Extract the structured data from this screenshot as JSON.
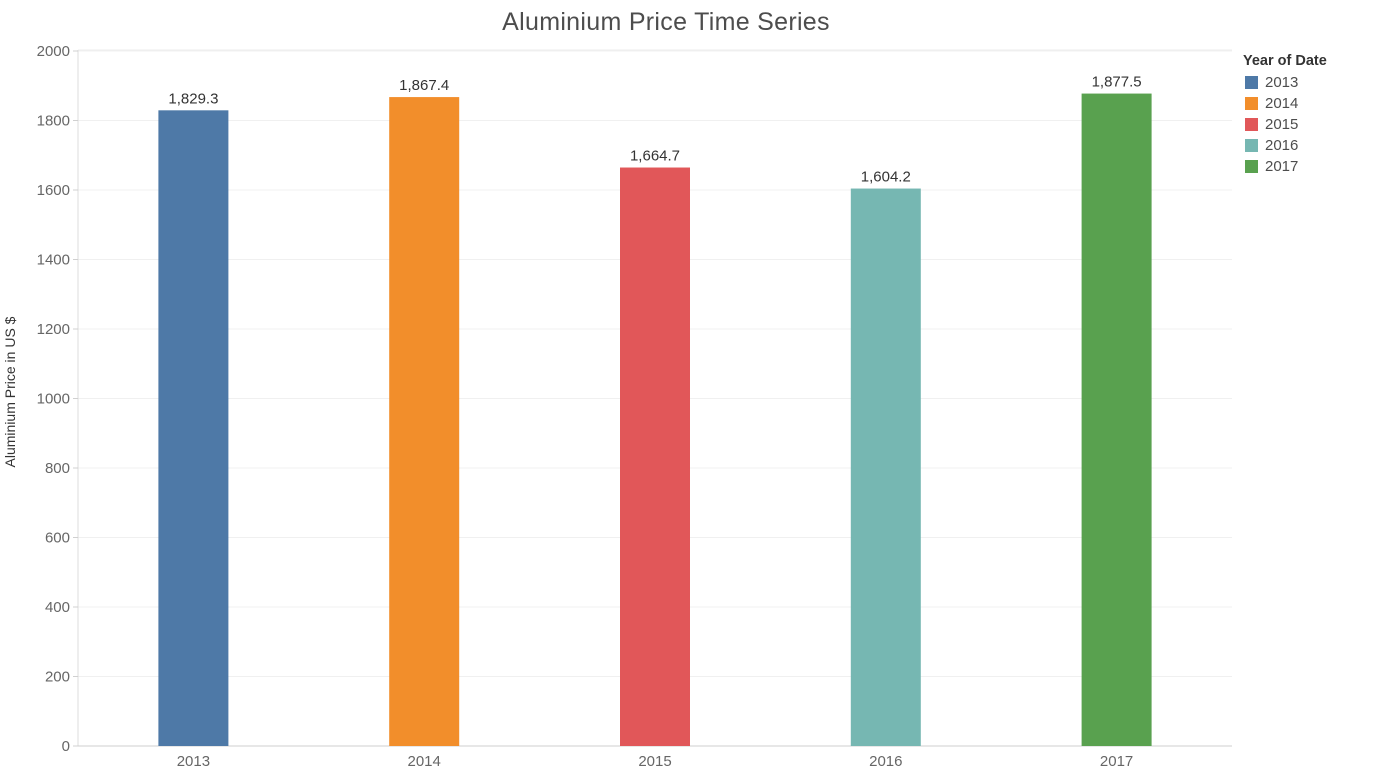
{
  "chart_data": {
    "type": "bar",
    "title": "Aluminium Price Time Series",
    "xlabel": "",
    "ylabel": "Aluminium Price in US $",
    "categories": [
      "2013",
      "2014",
      "2015",
      "2016",
      "2017"
    ],
    "values": [
      1829.3,
      1867.4,
      1664.7,
      1604.2,
      1877.5
    ],
    "value_labels": [
      "1,829.3",
      "1,867.4",
      "1,664.7",
      "1,604.2",
      "1,877.5"
    ],
    "colors": [
      "#4e79a7",
      "#f28e2b",
      "#e15759",
      "#76b7b2",
      "#59a14f"
    ],
    "ylim": [
      0,
      2000
    ],
    "yticks": [
      0,
      200,
      400,
      600,
      800,
      1000,
      1200,
      1400,
      1600,
      1800,
      2000
    ],
    "grid": true,
    "legend": {
      "title": "Year of Date",
      "placement": "right",
      "items": [
        {
          "label": "2013",
          "color": "#4e79a7"
        },
        {
          "label": "2014",
          "color": "#f28e2b"
        },
        {
          "label": "2015",
          "color": "#e15759"
        },
        {
          "label": "2016",
          "color": "#76b7b2"
        },
        {
          "label": "2017",
          "color": "#59a14f"
        }
      ]
    }
  }
}
